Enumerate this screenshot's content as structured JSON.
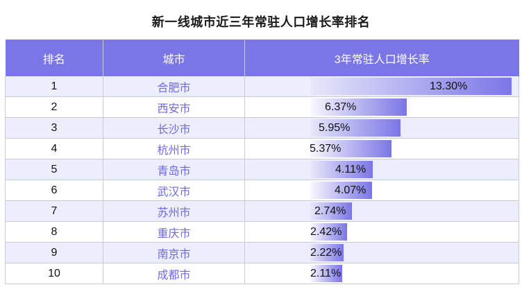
{
  "title": "新一线城市近三年常驻人口增长率排名",
  "columns": [
    "排名",
    "城市",
    "3年常驻人口增长率"
  ],
  "colors": {
    "header": "#7b76e6",
    "city_text": "#6e68e0",
    "stripe": "#edeefb"
  },
  "chart_data": {
    "type": "table",
    "title": "新一线城市近三年常驻人口增长率排名",
    "columns": [
      "排名",
      "城市",
      "3年常驻人口增长率"
    ],
    "rows": [
      {
        "rank": "1",
        "city": "合肥市",
        "rate": 13.3,
        "rate_label": "13.30%"
      },
      {
        "rank": "2",
        "city": "西安市",
        "rate": 6.37,
        "rate_label": "6.37%"
      },
      {
        "rank": "3",
        "city": "长沙市",
        "rate": 5.95,
        "rate_label": "5.95%"
      },
      {
        "rank": "4",
        "city": "杭州市",
        "rate": 5.37,
        "rate_label": "5.37%"
      },
      {
        "rank": "5",
        "city": "青岛市",
        "rate": 4.11,
        "rate_label": "4.11%"
      },
      {
        "rank": "6",
        "city": "武汉市",
        "rate": 4.07,
        "rate_label": "4.07%"
      },
      {
        "rank": "7",
        "city": "苏州市",
        "rate": 2.74,
        "rate_label": "2.74%"
      },
      {
        "rank": "8",
        "city": "重庆市",
        "rate": 2.42,
        "rate_label": "2.42%"
      },
      {
        "rank": "9",
        "city": "南京市",
        "rate": 2.22,
        "rate_label": "2.22%"
      },
      {
        "rank": "10",
        "city": "成都市",
        "rate": 2.11,
        "rate_label": "2.11%"
      }
    ]
  }
}
